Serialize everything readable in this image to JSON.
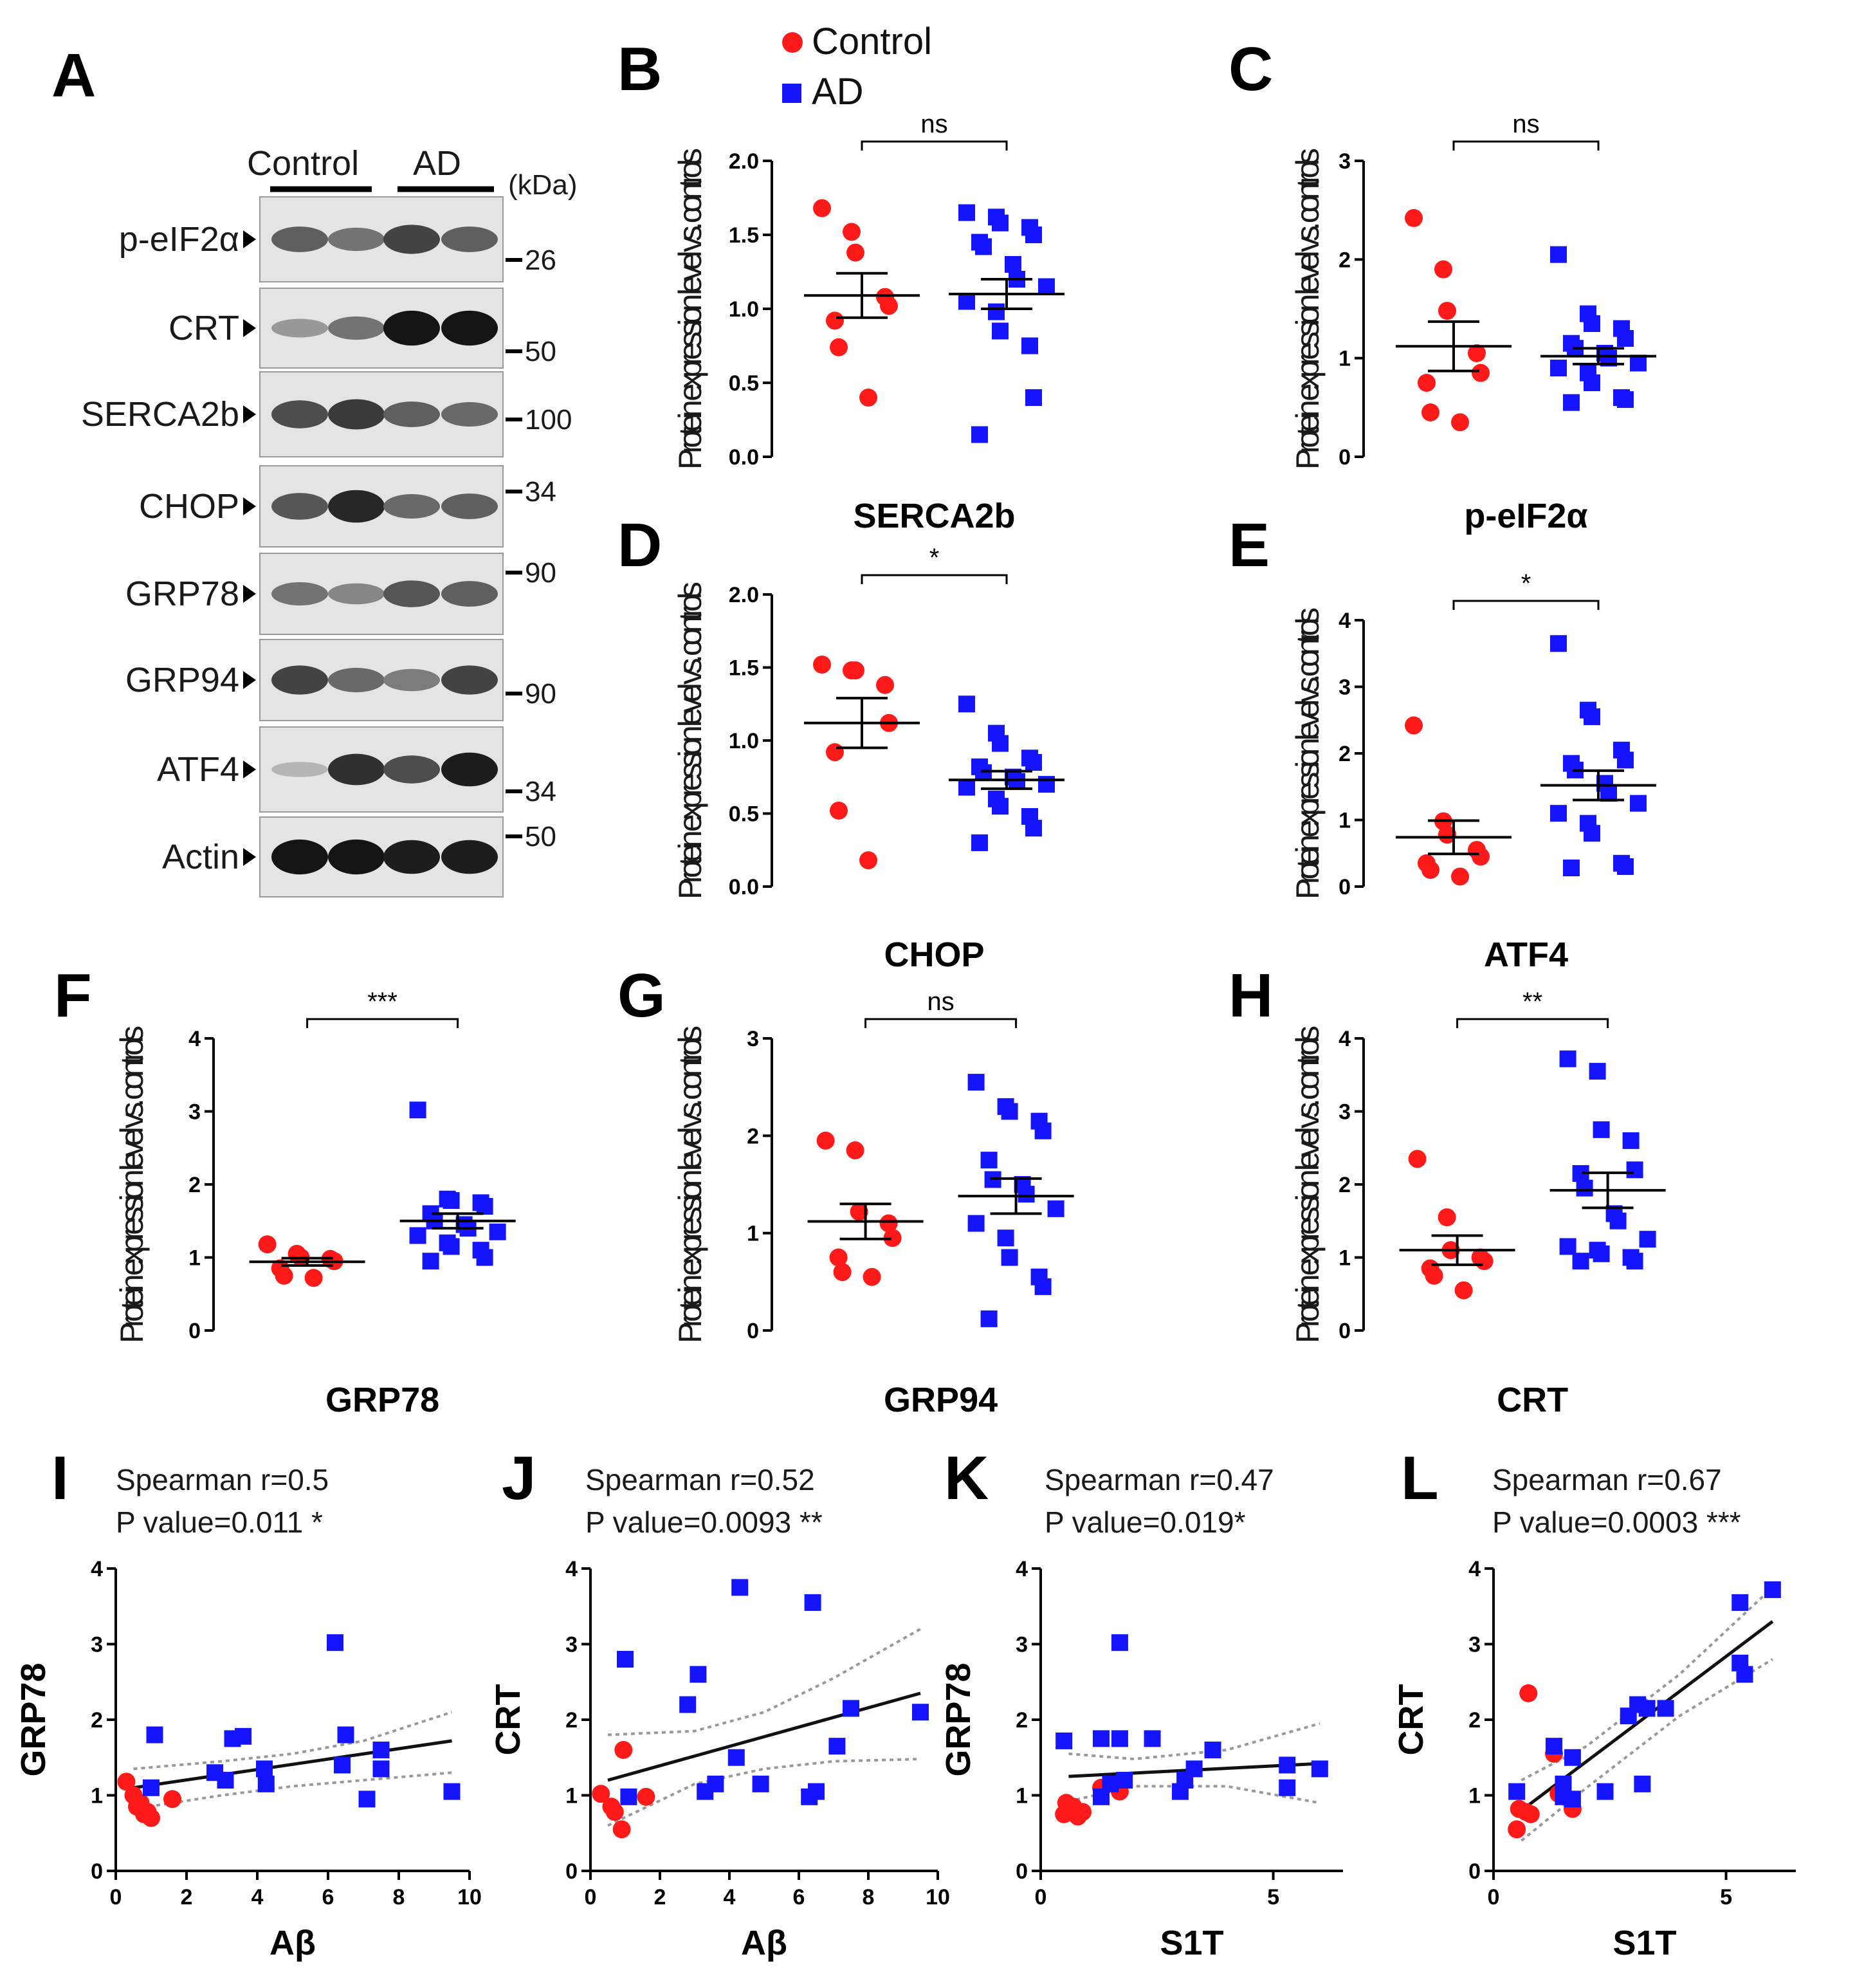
{
  "legend": {
    "control_label": "Control",
    "ad_label": "AD",
    "control_color": "#ff1a1a",
    "ad_color": "#1414ff"
  },
  "blot": {
    "letter": "A",
    "group_labels": [
      "Control",
      "AD"
    ],
    "kda_label": "(kDa)",
    "rows": [
      {
        "label": "p-eIF2α",
        "markers": [
          "26"
        ]
      },
      {
        "label": "CRT",
        "markers": [
          "50"
        ]
      },
      {
        "label": "SERCA2b",
        "markers": [
          "100"
        ]
      },
      {
        "label": "CHOP",
        "markers": [
          "34"
        ]
      },
      {
        "label": "GRP78",
        "markers": [
          "90"
        ]
      },
      {
        "label": "GRP94",
        "markers": [
          "90"
        ]
      },
      {
        "label": "ATF4",
        "markers": [
          "34"
        ]
      },
      {
        "label": "Actin",
        "markers": [
          "50"
        ]
      }
    ]
  },
  "chart_data": [
    {
      "letter": "B",
      "type": "scatter",
      "title": "SERCA2b",
      "xlabel": "SERCA2b",
      "ylabel": "Protein expression level vs. controls",
      "ylim": [
        0,
        2.0
      ],
      "yticks": [
        "0.0",
        "0.5",
        "1.0",
        "1.5",
        "2.0"
      ],
      "significance": "ns",
      "control": {
        "values": [
          1.68,
          1.52,
          1.38,
          1.08,
          1.02,
          0.92,
          0.74,
          0.4
        ],
        "mean": 1.09,
        "sem": 0.15
      },
      "ad": {
        "values": [
          1.65,
          1.62,
          1.58,
          1.55,
          1.5,
          1.45,
          1.42,
          1.3,
          1.2,
          1.15,
          1.05,
          0.98,
          0.85,
          0.75,
          0.4,
          0.15
        ],
        "mean": 1.1,
        "sem": 0.1
      }
    },
    {
      "letter": "C",
      "type": "scatter",
      "title": "p-eIF2α",
      "xlabel": "p-eIF2α",
      "ylabel": "Protein expression level vs. controls",
      "ylim": [
        0,
        3
      ],
      "yticks": [
        "0",
        "1",
        "2",
        "3"
      ],
      "significance": "ns",
      "control": {
        "values": [
          2.42,
          1.9,
          1.48,
          1.05,
          0.85,
          0.75,
          0.45,
          0.35
        ],
        "mean": 1.12,
        "sem": 0.25
      },
      "ad": {
        "values": [
          2.05,
          1.45,
          1.35,
          1.3,
          1.2,
          1.15,
          1.1,
          1.05,
          1.0,
          0.95,
          0.9,
          0.85,
          0.75,
          0.6,
          0.58,
          0.55
        ],
        "mean": 1.02,
        "sem": 0.08
      }
    },
    {
      "letter": "D",
      "type": "scatter",
      "title": "CHOP",
      "xlabel": "CHOP",
      "ylabel": "Protein expression level vs. controls",
      "ylim": [
        0,
        2.0
      ],
      "yticks": [
        "0.0",
        "0.5",
        "1.0",
        "1.5",
        "2.0"
      ],
      "significance": "*",
      "control": {
        "values": [
          1.52,
          1.48,
          1.48,
          1.38,
          1.12,
          0.92,
          0.52,
          0.18
        ],
        "mean": 1.12,
        "sem": 0.17
      },
      "ad": {
        "values": [
          1.25,
          1.05,
          0.98,
          0.88,
          0.85,
          0.82,
          0.78,
          0.75,
          0.72,
          0.7,
          0.68,
          0.6,
          0.55,
          0.48,
          0.4,
          0.3
        ],
        "mean": 0.73,
        "sem": 0.06
      }
    },
    {
      "letter": "E",
      "type": "scatter",
      "title": "ATF4",
      "xlabel": "ATF4",
      "ylabel": "Protein expression level vs. controls",
      "ylim": [
        0,
        4
      ],
      "yticks": [
        "0",
        "1",
        "2",
        "3",
        "4"
      ],
      "significance": "*",
      "control": {
        "values": [
          2.42,
          0.98,
          0.78,
          0.55,
          0.45,
          0.35,
          0.25,
          0.15
        ],
        "mean": 0.74,
        "sem": 0.25
      },
      "ad": {
        "values": [
          3.65,
          2.65,
          2.55,
          2.05,
          1.9,
          1.85,
          1.75,
          1.55,
          1.4,
          1.25,
          1.1,
          0.95,
          0.8,
          0.35,
          0.3,
          0.28
        ],
        "mean": 1.52,
        "sem": 0.22
      }
    },
    {
      "letter": "F",
      "type": "scatter",
      "title": "GRP78",
      "xlabel": "GRP78",
      "ylabel": "Protein expression level vs. controls",
      "ylim": [
        0,
        4
      ],
      "yticks": [
        "0",
        "1",
        "2",
        "3",
        "4"
      ],
      "significance": "***",
      "control": {
        "values": [
          1.18,
          1.05,
          1.0,
          0.98,
          0.95,
          0.85,
          0.75,
          0.72
        ],
        "mean": 0.94,
        "sem": 0.05
      },
      "ad": {
        "values": [
          3.02,
          1.8,
          1.78,
          1.75,
          1.7,
          1.6,
          1.5,
          1.45,
          1.4,
          1.35,
          1.3,
          1.2,
          1.15,
          1.1,
          1.0,
          0.95
        ],
        "mean": 1.5,
        "sem": 0.1
      }
    },
    {
      "letter": "G",
      "type": "scatter",
      "title": "GRP94",
      "xlabel": "GRP94",
      "ylabel": "Protein expression level vs. controls",
      "ylim": [
        0,
        3
      ],
      "yticks": [
        "0",
        "1",
        "2",
        "3"
      ],
      "significance": "ns",
      "control": {
        "values": [
          1.95,
          1.85,
          1.22,
          1.1,
          0.95,
          0.75,
          0.6,
          0.55
        ],
        "mean": 1.12,
        "sem": 0.18
      },
      "ad": {
        "values": [
          2.55,
          2.3,
          2.25,
          2.15,
          2.05,
          1.75,
          1.55,
          1.5,
          1.4,
          1.25,
          1.1,
          0.95,
          0.75,
          0.55,
          0.45,
          0.12
        ],
        "mean": 1.38,
        "sem": 0.18
      }
    },
    {
      "letter": "H",
      "type": "scatter",
      "title": "CRT",
      "xlabel": "CRT",
      "ylabel": "Protein expression level vs. controls",
      "ylim": [
        0,
        4
      ],
      "yticks": [
        "0",
        "1",
        "2",
        "3",
        "4"
      ],
      "significance": "**",
      "control": {
        "values": [
          2.35,
          1.55,
          1.1,
          1.0,
          0.95,
          0.85,
          0.75,
          0.55
        ],
        "mean": 1.1,
        "sem": 0.2
      },
      "ad": {
        "values": [
          3.72,
          3.55,
          2.75,
          2.6,
          2.2,
          2.15,
          1.95,
          1.6,
          1.5,
          1.25,
          1.15,
          1.1,
          1.05,
          1.0,
          0.95,
          0.95
        ],
        "mean": 1.92,
        "sem": 0.24
      }
    },
    {
      "letter": "I",
      "type": "scatter",
      "title": "GRP78 vs Aβ",
      "xlabel": "Aβ",
      "ylabel": "GRP78",
      "xlim": [
        0,
        10
      ],
      "ylim": [
        0,
        4
      ],
      "xticks": [
        "0",
        "2",
        "4",
        "6",
        "8",
        "10"
      ],
      "yticks": [
        "0",
        "1",
        "2",
        "3",
        "4"
      ],
      "stat_r": "Spearman r=0.5",
      "stat_p": "P value=0.011 *",
      "fit": {
        "x0": 0.5,
        "y0": 1.1,
        "x1": 9.5,
        "y1": 1.72
      },
      "ci_upper": [
        [
          0.5,
          1.35
        ],
        [
          3,
          1.45
        ],
        [
          5,
          1.55
        ],
        [
          7,
          1.72
        ],
        [
          9.5,
          2.1
        ]
      ],
      "ci_lower": [
        [
          0.5,
          0.82
        ],
        [
          3,
          1.0
        ],
        [
          5,
          1.12
        ],
        [
          7,
          1.2
        ],
        [
          9.5,
          1.3
        ]
      ],
      "control": {
        "points": [
          [
            0.3,
            1.18
          ],
          [
            0.5,
            1.0
          ],
          [
            0.6,
            0.85
          ],
          [
            0.7,
            0.9
          ],
          [
            0.8,
            0.75
          ],
          [
            0.9,
            0.78
          ],
          [
            1.0,
            0.7
          ],
          [
            1.6,
            0.95
          ]
        ]
      },
      "ad": {
        "points": [
          [
            1.0,
            1.1
          ],
          [
            1.1,
            1.8
          ],
          [
            2.8,
            1.3
          ],
          [
            3.1,
            1.2
          ],
          [
            3.3,
            1.75
          ],
          [
            3.6,
            1.78
          ],
          [
            4.2,
            1.35
          ],
          [
            4.25,
            1.15
          ],
          [
            6.2,
            3.02
          ],
          [
            6.4,
            1.4
          ],
          [
            6.5,
            1.8
          ],
          [
            7.1,
            0.95
          ],
          [
            7.5,
            1.6
          ],
          [
            7.5,
            1.35
          ],
          [
            9.5,
            1.05
          ]
        ]
      }
    },
    {
      "letter": "J",
      "type": "scatter",
      "title": "CRT vs Aβ",
      "xlabel": "Aβ",
      "ylabel": "CRT",
      "xlim": [
        0,
        10
      ],
      "ylim": [
        0,
        4
      ],
      "xticks": [
        "0",
        "2",
        "4",
        "6",
        "8",
        "10"
      ],
      "yticks": [
        "0",
        "1",
        "2",
        "3",
        "4"
      ],
      "stat_r": "Spearman r=0.52",
      "stat_p": "P value=0.0093 **",
      "fit": {
        "x0": 0.5,
        "y0": 1.2,
        "x1": 9.5,
        "y1": 2.35
      },
      "ci_upper": [
        [
          0.5,
          1.8
        ],
        [
          3,
          1.85
        ],
        [
          5,
          2.1
        ],
        [
          7,
          2.55
        ],
        [
          9.5,
          3.2
        ]
      ],
      "ci_lower": [
        [
          0.5,
          0.6
        ],
        [
          3,
          1.15
        ],
        [
          5,
          1.35
        ],
        [
          7,
          1.45
        ],
        [
          9.5,
          1.48
        ]
      ],
      "control": {
        "points": [
          [
            0.3,
            1.02
          ],
          [
            0.6,
            0.85
          ],
          [
            0.7,
            0.78
          ],
          [
            0.9,
            0.55
          ],
          [
            0.95,
            1.6
          ],
          [
            1.6,
            0.98
          ]
        ]
      },
      "ad": {
        "points": [
          [
            1.0,
            2.8
          ],
          [
            1.1,
            0.98
          ],
          [
            2.8,
            2.2
          ],
          [
            3.1,
            2.6
          ],
          [
            3.3,
            1.05
          ],
          [
            3.6,
            1.15
          ],
          [
            4.2,
            1.5
          ],
          [
            4.3,
            3.75
          ],
          [
            4.9,
            1.15
          ],
          [
            6.3,
            0.98
          ],
          [
            6.4,
            3.55
          ],
          [
            6.5,
            1.05
          ],
          [
            7.1,
            1.65
          ],
          [
            7.5,
            2.15
          ],
          [
            9.5,
            2.1
          ]
        ]
      }
    },
    {
      "letter": "K",
      "type": "scatter",
      "title": "GRP78 vs S1T",
      "xlabel": "S1T",
      "ylabel": "GRP78",
      "xlim": [
        0,
        6.5
      ],
      "ylim": [
        0,
        4
      ],
      "xticks": [
        "0",
        "5"
      ],
      "yticks": [
        "0",
        "1",
        "2",
        "3",
        "4"
      ],
      "stat_r": "Spearman r=0.47",
      "stat_p": "P value=0.019*",
      "fit": {
        "x0": 0.6,
        "y0": 1.25,
        "x1": 6.0,
        "y1": 1.42
      },
      "ci_upper": [
        [
          0.6,
          1.55
        ],
        [
          2,
          1.48
        ],
        [
          4,
          1.6
        ],
        [
          6,
          1.95
        ]
      ],
      "ci_lower": [
        [
          0.6,
          0.92
        ],
        [
          2,
          1.12
        ],
        [
          4,
          1.12
        ],
        [
          6,
          0.9
        ]
      ],
      "control": {
        "points": [
          [
            0.5,
            0.75
          ],
          [
            0.55,
            0.9
          ],
          [
            0.6,
            0.8
          ],
          [
            0.7,
            0.85
          ],
          [
            0.8,
            0.72
          ],
          [
            0.9,
            0.78
          ],
          [
            1.3,
            1.1
          ],
          [
            1.7,
            1.05
          ]
        ]
      },
      "ad": {
        "points": [
          [
            0.5,
            1.72
          ],
          [
            1.3,
            1.75
          ],
          [
            1.3,
            0.98
          ],
          [
            1.5,
            1.15
          ],
          [
            1.7,
            3.02
          ],
          [
            1.7,
            1.75
          ],
          [
            1.8,
            1.2
          ],
          [
            2.4,
            1.75
          ],
          [
            3.0,
            1.05
          ],
          [
            3.1,
            1.2
          ],
          [
            3.3,
            1.35
          ],
          [
            3.7,
            1.6
          ],
          [
            5.3,
            1.4
          ],
          [
            5.3,
            1.1
          ],
          [
            6.0,
            1.35
          ]
        ]
      }
    },
    {
      "letter": "L",
      "type": "scatter",
      "title": "CRT vs S1T",
      "xlabel": "S1T",
      "ylabel": "CRT",
      "xlim": [
        0,
        6.5
      ],
      "ylim": [
        0,
        4
      ],
      "xticks": [
        "0",
        "5"
      ],
      "yticks": [
        "0",
        "1",
        "2",
        "3",
        "4"
      ],
      "stat_r": "Spearman r=0.67",
      "stat_p": "P value=0.0003 ***",
      "fit": {
        "x0": 0.6,
        "y0": 0.8,
        "x1": 6.0,
        "y1": 3.3
      },
      "ci_upper": [
        [
          0.6,
          1.2
        ],
        [
          2,
          1.65
        ],
        [
          4,
          2.6
        ],
        [
          6,
          3.75
        ]
      ],
      "ci_lower": [
        [
          0.6,
          0.4
        ],
        [
          2,
          1.1
        ],
        [
          4,
          2.05
        ],
        [
          6,
          2.8
        ]
      ],
      "control": {
        "points": [
          [
            0.5,
            0.55
          ],
          [
            0.55,
            0.82
          ],
          [
            0.7,
            0.78
          ],
          [
            0.75,
            2.35
          ],
          [
            0.8,
            0.75
          ],
          [
            1.3,
            1.55
          ],
          [
            1.4,
            1.02
          ],
          [
            1.7,
            0.82
          ]
        ]
      },
      "ad": {
        "points": [
          [
            0.5,
            1.05
          ],
          [
            1.3,
            1.65
          ],
          [
            1.5,
            1.15
          ],
          [
            1.5,
            0.98
          ],
          [
            1.7,
            1.5
          ],
          [
            1.7,
            0.95
          ],
          [
            2.4,
            1.05
          ],
          [
            2.9,
            2.05
          ],
          [
            3.1,
            2.2
          ],
          [
            3.2,
            1.15
          ],
          [
            3.3,
            2.15
          ],
          [
            3.7,
            2.15
          ],
          [
            5.3,
            2.75
          ],
          [
            5.3,
            3.55
          ],
          [
            5.4,
            2.6
          ],
          [
            6.0,
            3.72
          ]
        ]
      }
    }
  ]
}
